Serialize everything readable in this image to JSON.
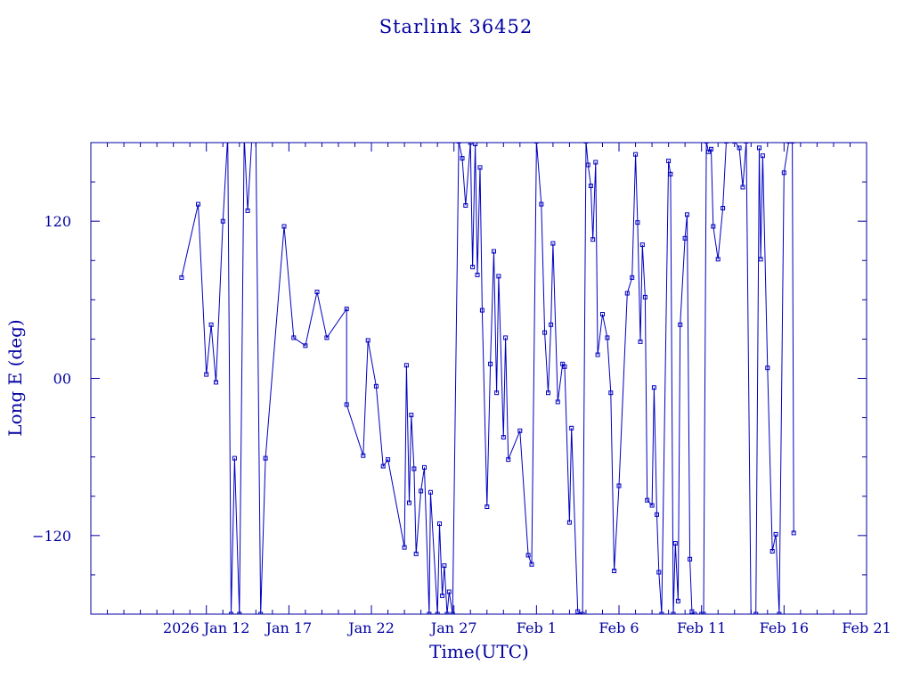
{
  "chart_data": {
    "type": "scatter",
    "title": "Starlink 36452",
    "xlabel": "Time(UTC)",
    "ylabel": "Long E (deg)",
    "x_range": [
      "2026-01-05",
      "2026-02-21"
    ],
    "ylim": [
      -180,
      180
    ],
    "grid": false,
    "x_tick_labels": [
      {
        "date": "2026-01-12",
        "label": "2026 Jan 12"
      },
      {
        "date": "2026-01-17",
        "label": "Jan 17"
      },
      {
        "date": "2026-01-22",
        "label": "Jan 22"
      },
      {
        "date": "2026-01-27",
        "label": "Jan 27"
      },
      {
        "date": "2026-02-01",
        "label": "Feb  1"
      },
      {
        "date": "2026-02-06",
        "label": "Feb  6"
      },
      {
        "date": "2026-02-11",
        "label": "Feb 11"
      },
      {
        "date": "2026-02-16",
        "label": "Feb 16"
      },
      {
        "date": "2026-02-21",
        "label": "Feb 21"
      }
    ],
    "y_tick_labels": [
      {
        "value": 120,
        "label": "120"
      },
      {
        "value": 0,
        "label": "00"
      },
      {
        "value": -120,
        "label": "−120"
      }
    ],
    "series": [
      {
        "line_color": "#0000c0",
        "points": [
          [
            "2026-01-10 12:00",
            77
          ],
          [
            "2026-01-11 12:00",
            133
          ],
          [
            "2026-01-12 00:00",
            3
          ],
          [
            "2026-01-12 07:00",
            41
          ],
          [
            "2026-01-12 14:00",
            -3
          ],
          [
            "2026-01-13 00:00",
            120
          ],
          [
            "2026-01-13 07:00",
            185
          ],
          [
            "2026-01-13 12:00",
            -180
          ],
          [
            "2026-01-13 17:00",
            -61
          ],
          [
            "2026-01-14 00:00",
            -180
          ],
          [
            "2026-01-14 07:00",
            185
          ],
          [
            "2026-01-14 12:00",
            128
          ],
          [
            "2026-01-14 18:00",
            182
          ],
          [
            "2026-01-15 00:00",
            182
          ],
          [
            "2026-01-15 07:00",
            -180
          ],
          [
            "2026-01-15 14:00",
            -61
          ],
          [
            "2026-01-16 17:00",
            116
          ],
          [
            "2026-01-17 07:00",
            31
          ],
          [
            "2026-01-18 00:00",
            25
          ],
          [
            "2026-01-18 17:00",
            66
          ],
          [
            "2026-01-19 07:00",
            31
          ],
          [
            "2026-01-20 12:00",
            53
          ],
          [
            "2026-01-20 12:00",
            -20
          ],
          [
            "2026-01-21 12:00",
            -59
          ],
          [
            "2026-01-21 19:00",
            29
          ],
          [
            "2026-01-22 07:00",
            -6
          ],
          [
            "2026-01-22 17:00",
            -67
          ],
          [
            "2026-01-23 00:00",
            -62
          ],
          [
            "2026-01-24 00:00",
            -129
          ],
          [
            "2026-01-24 03:00",
            10
          ],
          [
            "2026-01-24 07:00",
            -95
          ],
          [
            "2026-01-24 10:00",
            -28
          ],
          [
            "2026-01-24 14:00",
            -69
          ],
          [
            "2026-01-24 17:00",
            -134
          ],
          [
            "2026-01-25 00:00",
            -86
          ],
          [
            "2026-01-25 05:00",
            -68
          ],
          [
            "2026-01-25 12:00",
            -180
          ],
          [
            "2026-01-25 14:00",
            -87
          ],
          [
            "2026-01-26 00:00",
            -180
          ],
          [
            "2026-01-26 03:00",
            -111
          ],
          [
            "2026-01-26 07:00",
            -166
          ],
          [
            "2026-01-26 10:00",
            -143
          ],
          [
            "2026-01-26 14:00",
            -180
          ],
          [
            "2026-01-26 17:00",
            -163
          ],
          [
            "2026-01-26 22:00",
            -180
          ],
          [
            "2026-01-27 07:00",
            181
          ],
          [
            "2026-01-27 12:00",
            168
          ],
          [
            "2026-01-27 17:00",
            132
          ],
          [
            "2026-01-28 00:00",
            180
          ],
          [
            "2026-01-28 03:00",
            85
          ],
          [
            "2026-01-28 07:00",
            179
          ],
          [
            "2026-01-28 10:00",
            79
          ],
          [
            "2026-01-28 14:00",
            161
          ],
          [
            "2026-01-28 17:00",
            52
          ],
          [
            "2026-01-29 00:00",
            -98
          ],
          [
            "2026-01-29 05:00",
            11
          ],
          [
            "2026-01-29 10:00",
            97
          ],
          [
            "2026-01-29 14:00",
            -11
          ],
          [
            "2026-01-29 17:00",
            78
          ],
          [
            "2026-01-30 00:00",
            -45
          ],
          [
            "2026-01-30 03:00",
            31
          ],
          [
            "2026-01-30 07:00",
            -62
          ],
          [
            "2026-01-31 00:00",
            -40
          ],
          [
            "2026-01-31 12:00",
            -135
          ],
          [
            "2026-01-31 17:00",
            -142
          ],
          [
            "2026-02-01 00:00",
            181
          ],
          [
            "2026-02-01 07:00",
            133
          ],
          [
            "2026-02-01 12:00",
            35
          ],
          [
            "2026-02-01 17:00",
            -11
          ],
          [
            "2026-02-01 21:00",
            41
          ],
          [
            "2026-02-02 00:00",
            103
          ],
          [
            "2026-02-02 07:00",
            -18
          ],
          [
            "2026-02-02 14:00",
            11
          ],
          [
            "2026-02-02 17:00",
            9
          ],
          [
            "2026-02-03 00:00",
            -110
          ],
          [
            "2026-02-03 03:00",
            -38
          ],
          [
            "2026-02-03 12:00",
            -178
          ],
          [
            "2026-02-03 19:00",
            -180
          ],
          [
            "2026-02-04 00:00",
            181
          ],
          [
            "2026-02-04 03:00",
            163
          ],
          [
            "2026-02-04 07:00",
            147
          ],
          [
            "2026-02-04 10:00",
            106
          ],
          [
            "2026-02-04 14:00",
            165
          ],
          [
            "2026-02-04 17:00",
            18
          ],
          [
            "2026-02-05 00:00",
            49
          ],
          [
            "2026-02-05 07:00",
            31
          ],
          [
            "2026-02-05 12:00",
            -11
          ],
          [
            "2026-02-05 17:00",
            -147
          ],
          [
            "2026-02-06 00:00",
            -82
          ],
          [
            "2026-02-06 12:00",
            65
          ],
          [
            "2026-02-06 19:00",
            77
          ],
          [
            "2026-02-07 00:00",
            171
          ],
          [
            "2026-02-07 03:00",
            119
          ],
          [
            "2026-02-07 07:00",
            28
          ],
          [
            "2026-02-07 10:00",
            102
          ],
          [
            "2026-02-07 14:00",
            62
          ],
          [
            "2026-02-07 17:00",
            -93
          ],
          [
            "2026-02-08 00:00",
            -97
          ],
          [
            "2026-02-08 03:00",
            -7
          ],
          [
            "2026-02-08 07:00",
            -104
          ],
          [
            "2026-02-08 10:00",
            -148
          ],
          [
            "2026-02-08 14:00",
            -180
          ],
          [
            "2026-02-09 00:00",
            166
          ],
          [
            "2026-02-09 03:00",
            156
          ],
          [
            "2026-02-09 07:00",
            -180
          ],
          [
            "2026-02-09 10:00",
            -126
          ],
          [
            "2026-02-09 14:00",
            -170
          ],
          [
            "2026-02-09 17:00",
            41
          ],
          [
            "2026-02-10 00:00",
            107
          ],
          [
            "2026-02-10 03:00",
            125
          ],
          [
            "2026-02-10 07:00",
            -138
          ],
          [
            "2026-02-10 10:00",
            -178
          ],
          [
            "2026-02-10 14:00",
            -180
          ],
          [
            "2026-02-11 00:00",
            -180
          ],
          [
            "2026-02-11 03:00",
            -180
          ],
          [
            "2026-02-11 07:00",
            181
          ],
          [
            "2026-02-11 10:00",
            173
          ],
          [
            "2026-02-11 14:00",
            175
          ],
          [
            "2026-02-11 17:00",
            116
          ],
          [
            "2026-02-12 00:00",
            91
          ],
          [
            "2026-02-12 07:00",
            130
          ],
          [
            "2026-02-12 12:00",
            181
          ],
          [
            "2026-02-13 00:00",
            181
          ],
          [
            "2026-02-13 07:00",
            176
          ],
          [
            "2026-02-13 12:00",
            146
          ],
          [
            "2026-02-13 17:00",
            181
          ],
          [
            "2026-02-14 00:00",
            -186
          ],
          [
            "2026-02-14 07:00",
            -180
          ],
          [
            "2026-02-14 12:00",
            176
          ],
          [
            "2026-02-14 14:00",
            91
          ],
          [
            "2026-02-14 17:00",
            170
          ],
          [
            "2026-02-15 00:00",
            8
          ],
          [
            "2026-02-15 07:00",
            -132
          ],
          [
            "2026-02-15 12:00",
            -119
          ],
          [
            "2026-02-15 17:00",
            -180
          ],
          [
            "2026-02-16 00:00",
            157
          ],
          [
            "2026-02-16 07:00",
            181
          ],
          [
            "2026-02-16 12:00",
            181
          ],
          [
            "2026-02-16 14:00",
            -118
          ]
        ]
      }
    ]
  }
}
